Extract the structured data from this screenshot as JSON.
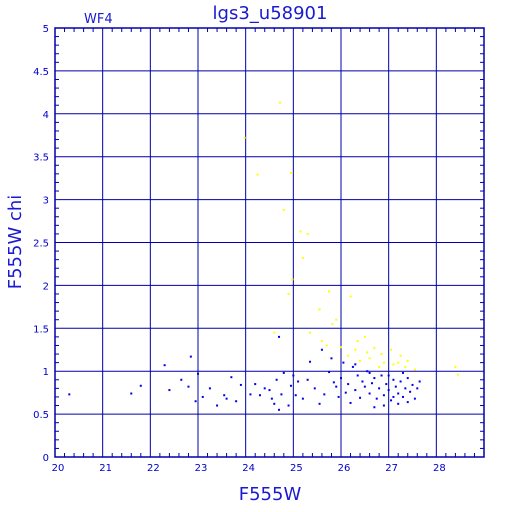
{
  "chart_data": {
    "type": "scatter",
    "title": "lgs3_u58901",
    "subtitle": "WF4",
    "xlabel": "F555W",
    "ylabel": "F555W  chi",
    "xlim": [
      20,
      29
    ],
    "ylim": [
      0,
      5
    ],
    "xticks": [
      "20",
      "21",
      "22",
      "23",
      "24",
      "25",
      "26",
      "27",
      "28"
    ],
    "yticks": [
      "0",
      "0.5",
      "1",
      "1.5",
      "2",
      "2.5",
      "3",
      "3.5",
      "4",
      "4.5",
      "5"
    ],
    "grid": true,
    "colors": {
      "frame": "#0000aa",
      "text": "#1a1ad0",
      "blue_series": "#0000ee",
      "yellow_series": "#ffff00"
    },
    "series": [
      {
        "color": "#ffff00",
        "points": [
          [
            23.98,
            3.72
          ],
          [
            24.25,
            3.29
          ],
          [
            24.72,
            4.13
          ],
          [
            24.95,
            3.31
          ],
          [
            24.8,
            2.88
          ],
          [
            25.15,
            2.63
          ],
          [
            25.3,
            2.6
          ],
          [
            25.2,
            2.32
          ],
          [
            24.98,
            2.07
          ],
          [
            24.9,
            1.9
          ],
          [
            25.55,
            1.72
          ],
          [
            25.75,
            1.93
          ],
          [
            25.9,
            1.6
          ],
          [
            25.82,
            1.55
          ],
          [
            26.2,
            1.87
          ],
          [
            25.6,
            1.35
          ],
          [
            25.7,
            1.3
          ],
          [
            26.0,
            1.28
          ],
          [
            26.3,
            1.25
          ],
          [
            26.55,
            1.22
          ],
          [
            26.5,
            1.4
          ],
          [
            26.7,
            1.27
          ],
          [
            26.85,
            1.2
          ],
          [
            27.05,
            1.25
          ],
          [
            27.25,
            1.18
          ],
          [
            26.4,
            1.12
          ],
          [
            26.6,
            1.15
          ],
          [
            26.9,
            1.1
          ],
          [
            27.1,
            1.08
          ],
          [
            27.35,
            1.05
          ],
          [
            27.55,
            1.02
          ],
          [
            28.4,
            1.05
          ],
          [
            28.45,
            0.96
          ],
          [
            26.8,
            1.05
          ],
          [
            27.2,
            1.1
          ],
          [
            25.35,
            1.45
          ],
          [
            24.6,
            1.45
          ],
          [
            26.35,
            1.35
          ],
          [
            27.4,
            1.12
          ],
          [
            26.15,
            1.18
          ]
        ]
      },
      {
        "color": "#0000ee",
        "points": [
          [
            20.3,
            0.73
          ],
          [
            21.6,
            0.74
          ],
          [
            21.8,
            0.83
          ],
          [
            22.3,
            1.07
          ],
          [
            22.65,
            0.9
          ],
          [
            22.8,
            0.82
          ],
          [
            22.85,
            1.17
          ],
          [
            22.95,
            0.65
          ],
          [
            23.0,
            0.97
          ],
          [
            23.1,
            0.7
          ],
          [
            23.25,
            0.8
          ],
          [
            23.4,
            0.6
          ],
          [
            23.55,
            0.72
          ],
          [
            23.7,
            0.93
          ],
          [
            23.8,
            0.65
          ],
          [
            23.9,
            0.84
          ],
          [
            24.1,
            0.73
          ],
          [
            24.3,
            0.72
          ],
          [
            24.4,
            0.8
          ],
          [
            24.55,
            0.68
          ],
          [
            24.6,
            0.62
          ],
          [
            24.65,
            0.9
          ],
          [
            24.7,
            0.55
          ],
          [
            24.75,
            0.73
          ],
          [
            24.8,
            0.98
          ],
          [
            24.9,
            0.6
          ],
          [
            24.95,
            0.83
          ],
          [
            25.05,
            0.72
          ],
          [
            25.2,
            0.68
          ],
          [
            25.3,
            0.9
          ],
          [
            25.35,
            1.11
          ],
          [
            25.45,
            0.8
          ],
          [
            25.55,
            0.62
          ],
          [
            25.6,
            1.25
          ],
          [
            25.65,
            0.73
          ],
          [
            25.75,
            0.99
          ],
          [
            25.85,
            0.87
          ],
          [
            25.95,
            0.7
          ],
          [
            26.0,
            0.92
          ],
          [
            26.05,
            1.1
          ],
          [
            26.1,
            0.75
          ],
          [
            26.15,
            0.85
          ],
          [
            26.2,
            0.63
          ],
          [
            26.25,
            1.05
          ],
          [
            26.3,
            0.78
          ],
          [
            26.35,
            0.95
          ],
          [
            26.4,
            0.69
          ],
          [
            26.45,
            0.88
          ],
          [
            26.5,
            0.82
          ],
          [
            26.55,
            1.0
          ],
          [
            26.6,
            0.74
          ],
          [
            26.65,
            0.86
          ],
          [
            26.7,
            0.92
          ],
          [
            26.75,
            0.68
          ],
          [
            26.8,
            0.8
          ],
          [
            26.85,
            0.95
          ],
          [
            26.9,
            0.72
          ],
          [
            26.95,
            0.85
          ],
          [
            27.0,
            0.78
          ],
          [
            27.05,
            0.66
          ],
          [
            27.1,
            0.9
          ],
          [
            27.15,
            0.82
          ],
          [
            27.2,
            0.74
          ],
          [
            27.25,
            0.88
          ],
          [
            27.3,
            0.7
          ],
          [
            27.35,
            0.8
          ],
          [
            27.4,
            0.92
          ],
          [
            27.45,
            0.76
          ],
          [
            27.5,
            0.84
          ],
          [
            27.55,
            0.68
          ],
          [
            27.6,
            0.8
          ],
          [
            27.65,
            0.88
          ],
          [
            27.0,
            0.95
          ],
          [
            27.3,
            0.98
          ],
          [
            26.9,
            0.6
          ],
          [
            27.2,
            0.62
          ],
          [
            27.4,
            0.64
          ],
          [
            26.7,
            0.58
          ],
          [
            24.7,
            1.4
          ],
          [
            25.0,
            0.95
          ],
          [
            24.2,
            0.85
          ],
          [
            23.6,
            0.68
          ],
          [
            22.4,
            0.78
          ],
          [
            25.8,
            1.15
          ],
          [
            26.3,
            1.08
          ],
          [
            24.5,
            0.78
          ],
          [
            25.1,
            0.88
          ],
          [
            25.9,
            0.82
          ],
          [
            26.6,
            0.98
          ],
          [
            27.1,
            0.7
          ]
        ]
      }
    ]
  }
}
